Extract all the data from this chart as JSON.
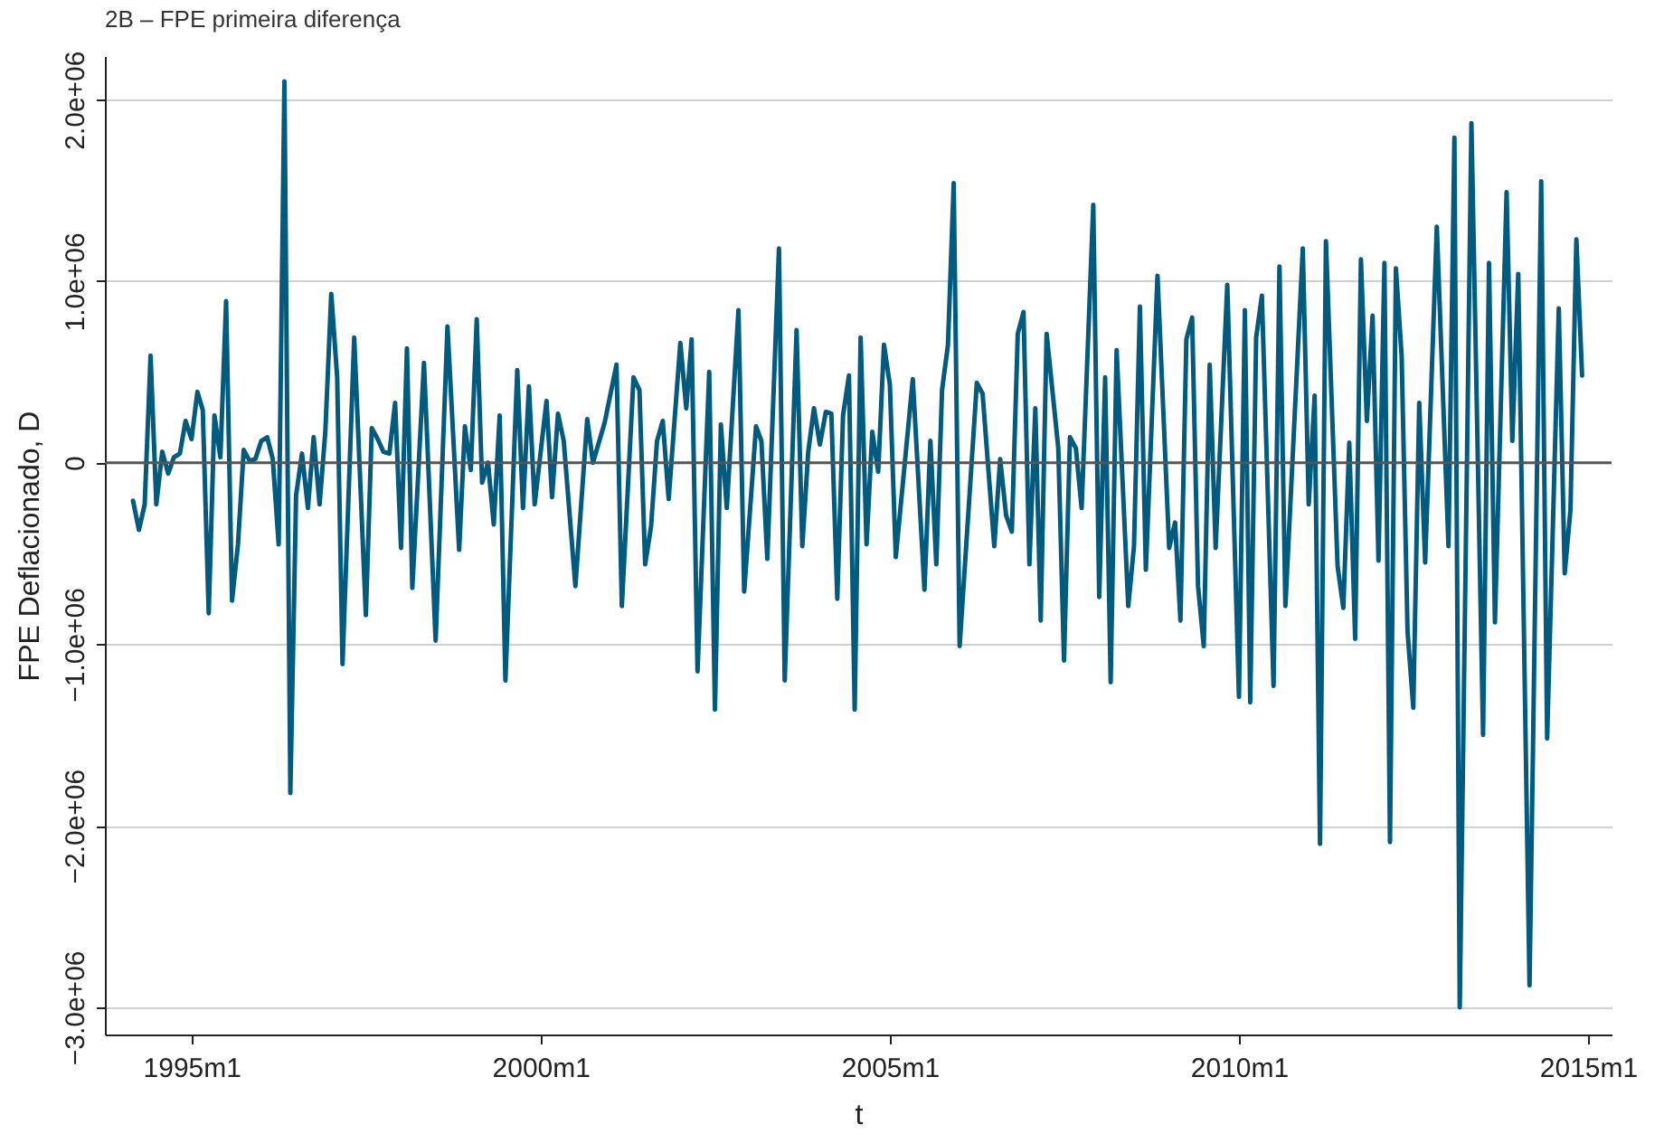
{
  "chart_data": {
    "type": "line",
    "title": "2B – FPE primeira diferença",
    "xlabel": "t",
    "ylabel": "FPE Deflacionado, D",
    "xlim": [
      "1993-10-05",
      "2015-05-04"
    ],
    "xticks": [
      {
        "value": "1995-01",
        "label": "1995m1"
      },
      {
        "value": "2000-01",
        "label": "2000m1"
      },
      {
        "value": "2005-01",
        "label": "2005m1"
      },
      {
        "value": "2010-01",
        "label": "2010m1"
      },
      {
        "value": "2015-01",
        "label": "2015m1"
      }
    ],
    "ylim": [
      -3150000,
      2240000
    ],
    "yticks": [
      {
        "value": -3000000,
        "label": "−3.0e+06"
      },
      {
        "value": -2000000,
        "label": "−2.0e+06"
      },
      {
        "value": -1000000,
        "label": "−1.0e+06"
      },
      0,
      {
        "value": 1000000,
        "label": "1.0e+06"
      },
      {
        "value": 2000000,
        "label": "2.0e+06"
      }
    ],
    "grid": "y",
    "line_style": "solid",
    "ref_lines": [
      {
        "axis": "y",
        "value": 0,
        "color": "#555555"
      }
    ],
    "series": [
      {
        "color": "#005b7f",
        "x": [
          "1994-03",
          "1994-04",
          "1994-05",
          "1994-06",
          "1994-07",
          "1994-08",
          "1994-09",
          "1994-10",
          "1994-11",
          "1994-12",
          "1995-01",
          "1995-02",
          "1995-03",
          "1995-04",
          "1995-05",
          "1995-06",
          "1995-07",
          "1995-08",
          "1995-09",
          "1995-10",
          "1995-11",
          "1995-12",
          "1996-01",
          "1996-02",
          "1996-03",
          "1996-04",
          "1996-05",
          "1996-06",
          "1996-07",
          "1996-08",
          "1996-09",
          "1996-10",
          "1996-11",
          "1996-12",
          "1997-01",
          "1997-02",
          "1997-03",
          "1997-05",
          "1997-07",
          "1997-08",
          "1997-09",
          "1997-10",
          "1997-11",
          "1997-12",
          "1998-01",
          "1998-02",
          "1998-03",
          "1998-05",
          "1998-07",
          "1998-09",
          "1998-11",
          "1998-12",
          "1999-01",
          "1999-02",
          "1999-03",
          "1999-04",
          "1999-05",
          "1999-06",
          "1999-07",
          "1999-09",
          "1999-10",
          "1999-11",
          "1999-12",
          "2000-02",
          "2000-03",
          "2000-04",
          "2000-05",
          "2000-07",
          "2000-09",
          "2000-10",
          "2000-12",
          "2001-02",
          "2001-03",
          "2001-05",
          "2001-06",
          "2001-07",
          "2001-08",
          "2001-09",
          "2001-10",
          "2001-11",
          "2002-01",
          "2002-02",
          "2002-03",
          "2002-04",
          "2002-06",
          "2002-07",
          "2002-08",
          "2002-09",
          "2002-11",
          "2002-12",
          "2003-02",
          "2003-03",
          "2003-04",
          "2003-06",
          "2003-07",
          "2003-09",
          "2003-10",
          "2003-11",
          "2003-12",
          "2004-01",
          "2004-02",
          "2004-03",
          "2004-04",
          "2004-05",
          "2004-06",
          "2004-07",
          "2004-08",
          "2004-09",
          "2004-10",
          "2004-11",
          "2004-12",
          "2005-01",
          "2005-02",
          "2005-05",
          "2005-07",
          "2005-08",
          "2005-09",
          "2005-10",
          "2005-11",
          "2005-12",
          "2006-01",
          "2006-04",
          "2006-05",
          "2006-07",
          "2006-08",
          "2006-09",
          "2006-10",
          "2006-11",
          "2006-12",
          "2007-01",
          "2007-02",
          "2007-03",
          "2007-04",
          "2007-06",
          "2007-07",
          "2007-08",
          "2007-09",
          "2007-10",
          "2007-12",
          "2008-01",
          "2008-02",
          "2008-03",
          "2008-04",
          "2008-06",
          "2008-07",
          "2008-08",
          "2008-09",
          "2008-11",
          "2009-01",
          "2009-02",
          "2009-03",
          "2009-04",
          "2009-05",
          "2009-06",
          "2009-07",
          "2009-08",
          "2009-09",
          "2009-11",
          "2010-01",
          "2010-02",
          "2010-03",
          "2010-04",
          "2010-05",
          "2010-07",
          "2010-08",
          "2010-09",
          "2010-12",
          "2011-01",
          "2011-02",
          "2011-03",
          "2011-04",
          "2011-06",
          "2011-07",
          "2011-08",
          "2011-09",
          "2011-10",
          "2011-11",
          "2011-12",
          "2012-01",
          "2012-02",
          "2012-03",
          "2012-04",
          "2012-05",
          "2012-06",
          "2012-07",
          "2012-08",
          "2012-09",
          "2012-11",
          "2013-01",
          "2013-02",
          "2013-03",
          "2013-05",
          "2013-07",
          "2013-08",
          "2013-09",
          "2013-11",
          "2013-12",
          "2014-01",
          "2014-03",
          "2014-05",
          "2014-06",
          "2014-08",
          "2014-09",
          "2014-10",
          "2014-11",
          "2014-12"
        ],
        "values": [
          -210000,
          -370000,
          -230000,
          590000,
          -230000,
          60000,
          -60000,
          30000,
          50000,
          230000,
          130000,
          390000,
          290000,
          -830000,
          260000,
          30000,
          890000,
          -760000,
          -450000,
          70000,
          10000,
          20000,
          120000,
          140000,
          20000,
          -450000,
          2100000,
          -1820000,
          -180000,
          50000,
          -250000,
          140000,
          -230000,
          170000,
          930000,
          470000,
          -1110000,
          690000,
          -840000,
          190000,
          130000,
          60000,
          50000,
          330000,
          -470000,
          630000,
          -690000,
          550000,
          -980000,
          750000,
          -480000,
          200000,
          -40000,
          790000,
          -110000,
          0,
          -340000,
          260000,
          -1200000,
          510000,
          -250000,
          420000,
          -230000,
          340000,
          -190000,
          270000,
          120000,
          -680000,
          240000,
          0,
          220000,
          540000,
          -790000,
          470000,
          400000,
          -560000,
          -350000,
          120000,
          230000,
          -200000,
          660000,
          300000,
          680000,
          -1150000,
          500000,
          -1360000,
          210000,
          -250000,
          840000,
          -710000,
          200000,
          120000,
          -530000,
          1180000,
          -1200000,
          730000,
          -460000,
          60000,
          300000,
          100000,
          280000,
          270000,
          -750000,
          260000,
          480000,
          -1360000,
          690000,
          -450000,
          170000,
          -50000,
          650000,
          430000,
          -520000,
          460000,
          -700000,
          120000,
          -560000,
          400000,
          650000,
          1540000,
          -1010000,
          440000,
          380000,
          -460000,
          20000,
          -290000,
          -380000,
          710000,
          830000,
          -560000,
          300000,
          -870000,
          710000,
          80000,
          -1090000,
          140000,
          80000,
          -250000,
          1420000,
          -740000,
          470000,
          -1210000,
          620000,
          -790000,
          -460000,
          860000,
          -590000,
          1030000,
          -470000,
          -330000,
          -870000,
          680000,
          800000,
          -680000,
          -1010000,
          540000,
          -470000,
          980000,
          -1290000,
          840000,
          -1320000,
          690000,
          920000,
          -1230000,
          1080000,
          -790000,
          1180000,
          -230000,
          370000,
          -2100000,
          1220000,
          -570000,
          -800000,
          110000,
          -970000,
          1120000,
          230000,
          810000,
          -540000,
          1100000,
          -2090000,
          1070000,
          590000,
          -930000,
          -1350000,
          330000,
          -550000,
          1300000,
          -460000,
          1790000,
          -3000000,
          1870000,
          -1500000,
          1100000,
          -880000,
          1490000,
          120000,
          1040000,
          -2880000,
          1550000,
          -1520000,
          850000,
          -610000,
          -260000,
          1230000,
          480000
        ]
      }
    ]
  }
}
